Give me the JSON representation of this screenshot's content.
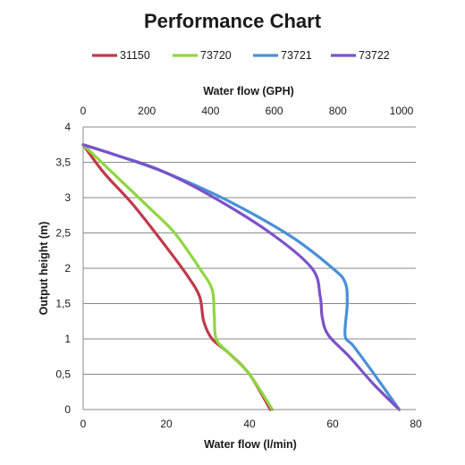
{
  "chart_data": {
    "type": "line",
    "title": "Performance Chart",
    "xlabel": "Water flow (l/min)",
    "x2label": "Water flow (GPH)",
    "ylabel": "Output height (m)",
    "xlim": [
      0,
      80
    ],
    "x2lim": [
      0,
      1000
    ],
    "ylim": [
      0,
      4
    ],
    "x_ticks": [
      "0",
      "20",
      "40",
      "60",
      "80"
    ],
    "x2_ticks": [
      "0",
      "200",
      "400",
      "600",
      "800",
      "1000"
    ],
    "y_ticks": [
      "0",
      "0,5",
      "1",
      "1,5",
      "2",
      "2,5",
      "3",
      "3,5",
      "4"
    ],
    "grid": true,
    "legend_position": "top",
    "series": [
      {
        "name": "31150",
        "color": "#c0394b",
        "points": [
          [
            45,
            0
          ],
          [
            40,
            0.5
          ],
          [
            35,
            0.8
          ],
          [
            31,
            1.0
          ],
          [
            29,
            1.25
          ],
          [
            28,
            1.6
          ],
          [
            25,
            1.9
          ],
          [
            20,
            2.3
          ],
          [
            12,
            2.9
          ],
          [
            5,
            3.35
          ],
          [
            0,
            3.75
          ]
        ]
      },
      {
        "name": "73720",
        "color": "#8fd640",
        "points": [
          [
            45.5,
            0
          ],
          [
            40,
            0.5
          ],
          [
            35,
            0.8
          ],
          [
            32,
            1.0
          ],
          [
            31.5,
            1.35
          ],
          [
            31,
            1.7
          ],
          [
            28,
            2.0
          ],
          [
            22,
            2.5
          ],
          [
            16,
            2.85
          ],
          [
            8,
            3.3
          ],
          [
            0,
            3.75
          ]
        ]
      },
      {
        "name": "73721",
        "color": "#4a90d9",
        "points": [
          [
            76,
            0
          ],
          [
            70,
            0.5
          ],
          [
            65,
            0.9
          ],
          [
            63,
            1.05
          ],
          [
            63.5,
            1.5
          ],
          [
            63,
            1.8
          ],
          [
            60,
            2.0
          ],
          [
            50,
            2.45
          ],
          [
            35,
            2.95
          ],
          [
            20,
            3.35
          ],
          [
            8,
            3.6
          ],
          [
            0,
            3.75
          ]
        ]
      },
      {
        "name": "73722",
        "color": "#7b52c8",
        "points": [
          [
            76,
            0
          ],
          [
            70,
            0.35
          ],
          [
            64,
            0.75
          ],
          [
            59,
            1.05
          ],
          [
            57.5,
            1.3
          ],
          [
            57,
            1.6
          ],
          [
            55,
            2.0
          ],
          [
            45,
            2.5
          ],
          [
            30,
            3.05
          ],
          [
            18,
            3.4
          ],
          [
            8,
            3.6
          ],
          [
            0,
            3.75
          ]
        ]
      }
    ]
  }
}
